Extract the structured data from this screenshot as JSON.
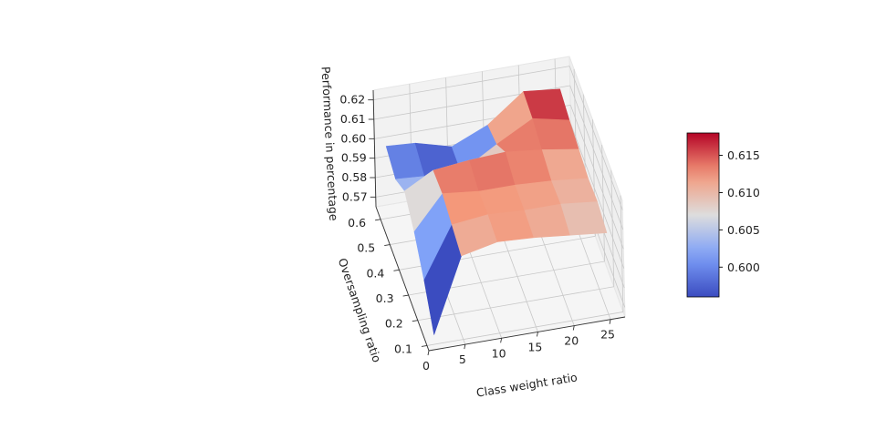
{
  "chart_data": {
    "type": "surface3d",
    "xlabel": "Class weight ratio",
    "ylabel": "Oversampling ratio",
    "zlabel": "Performance in percentage",
    "x_ticks": [
      "0",
      "5",
      "10",
      "15",
      "20",
      "25"
    ],
    "y_ticks": [
      "0.1",
      "0.2",
      "0.3",
      "0.4",
      "0.5",
      "0.6"
    ],
    "z_ticks": [
      "0.57",
      "0.58",
      "0.59",
      "0.60",
      "0.61",
      "0.62"
    ],
    "colorbar": {
      "ticks": [
        "0.600",
        "0.605",
        "0.610",
        "0.615"
      ],
      "min": 0.596,
      "max": 0.618,
      "colormap": "coolwarm"
    },
    "colors": {
      "cool": "#3b4cc0",
      "neutral": "#dddddd",
      "warm": "#b40426"
    },
    "grid": true,
    "legend": "colorbar-right",
    "x": [
      1,
      5,
      10,
      15,
      20,
      25
    ],
    "y": [
      0.1,
      0.2,
      0.3,
      0.4,
      0.5,
      0.6
    ],
    "z": [
      [
        0.57,
        0.608,
        0.612,
        0.611,
        0.609,
        0.607
      ],
      [
        0.585,
        0.611,
        0.613,
        0.612,
        0.612,
        0.61
      ],
      [
        0.597,
        0.614,
        0.612,
        0.612,
        0.611,
        0.609
      ],
      [
        0.605,
        0.613,
        0.615,
        0.616,
        0.614,
        0.611
      ],
      [
        0.598,
        0.597,
        0.596,
        0.607,
        0.617,
        0.613
      ],
      [
        0.602,
        0.601,
        0.596,
        0.604,
        0.618,
        0.616
      ]
    ]
  }
}
